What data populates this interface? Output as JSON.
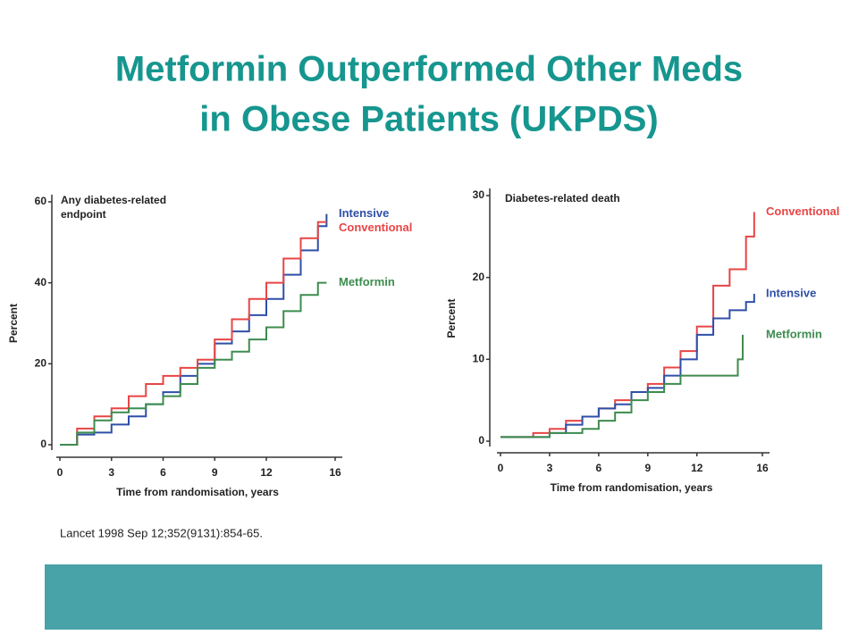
{
  "title_lines": [
    "Metformin Outperformed Other Meds",
    "in Obese Patients (UKPDS)"
  ],
  "citation": "Lancet 1998 Sep 12;352(9131):854-65.",
  "chart_data": [
    {
      "type": "line",
      "annotation": "Any diabetes-related endpoint",
      "x_label": "Time from randomisation, years",
      "y_label": "Percent",
      "xlim": [
        0,
        16
      ],
      "ylim": [
        0,
        60
      ],
      "xticks": [
        0,
        3,
        6,
        9,
        12,
        16
      ],
      "yticks": [
        0,
        20,
        40,
        60
      ],
      "series": [
        {
          "name": "Intensive",
          "color": "#2f4fa8",
          "x": [
            0,
            1,
            2,
            3,
            4,
            5,
            6,
            7,
            8,
            9,
            10,
            11,
            12,
            13,
            14,
            15,
            15.5
          ],
          "values": [
            0,
            2.5,
            3,
            5,
            7,
            10,
            13,
            17,
            20,
            25,
            28,
            32,
            36,
            42,
            48,
            54,
            57
          ]
        },
        {
          "name": "Conventional",
          "color": "#e84545",
          "x": [
            0,
            1,
            2,
            3,
            4,
            5,
            6,
            7,
            8,
            9,
            10,
            11,
            12,
            13,
            14,
            15,
            15.5
          ],
          "values": [
            0,
            4,
            7,
            9,
            12,
            15,
            17,
            19,
            21,
            26,
            31,
            36,
            40,
            46,
            51,
            55,
            55
          ]
        },
        {
          "name": "Metformin",
          "color": "#3d8c4e",
          "x": [
            0,
            1,
            2,
            3,
            4,
            5,
            6,
            7,
            8,
            9,
            10,
            11,
            12,
            13,
            14,
            15,
            15.5
          ],
          "values": [
            0,
            3,
            6,
            8,
            9,
            10,
            12,
            15,
            19,
            21,
            23,
            26,
            29,
            33,
            37,
            40,
            40
          ]
        }
      ]
    },
    {
      "type": "line",
      "annotation": "Diabetes-related death",
      "x_label": "Time from randomisation, years",
      "y_label": "Percent",
      "xlim": [
        0,
        16
      ],
      "ylim": [
        0,
        30
      ],
      "xticks": [
        0,
        3,
        6,
        9,
        12,
        16
      ],
      "yticks": [
        0,
        10,
        20,
        30
      ],
      "series": [
        {
          "name": "Conventional",
          "color": "#e84545",
          "x": [
            0,
            2,
            3,
            4,
            5,
            6,
            7,
            8,
            9,
            10,
            11,
            12,
            13,
            14,
            15,
            15.5
          ],
          "values": [
            0.5,
            1,
            1.5,
            2.5,
            3,
            4,
            5,
            6,
            7,
            9,
            11,
            14,
            19,
            21,
            25,
            28
          ]
        },
        {
          "name": "Intensive",
          "color": "#2f4fa8",
          "x": [
            0,
            3,
            4,
            5,
            6,
            7,
            8,
            9,
            10,
            11,
            12,
            13,
            14,
            15,
            15.5
          ],
          "values": [
            0.5,
            1,
            2,
            3,
            4,
            4.5,
            6,
            6.5,
            8,
            10,
            13,
            15,
            16,
            17,
            18
          ]
        },
        {
          "name": "Metformin",
          "color": "#3d8c4e",
          "x": [
            0,
            3,
            5,
            6,
            7,
            8,
            9,
            10,
            11,
            12,
            13,
            14,
            14.5,
            14.8
          ],
          "values": [
            0.5,
            1,
            1.5,
            2.5,
            3.5,
            5,
            6,
            7,
            8,
            8,
            8,
            8,
            10,
            13
          ]
        }
      ]
    }
  ]
}
